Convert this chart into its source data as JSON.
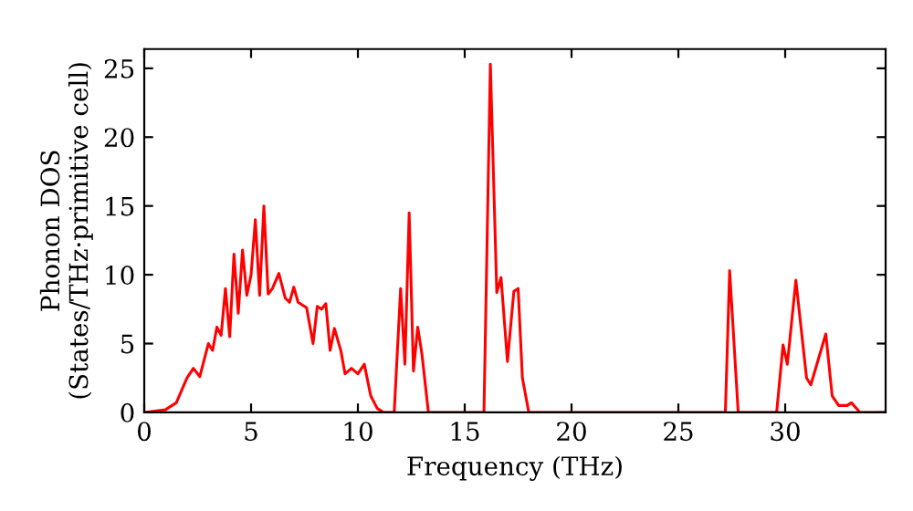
{
  "chart_data": {
    "type": "line",
    "xlabel": "Frequency (THz)",
    "ylabel": "Phonon DOS\n(States/THz·primitive cell)",
    "x": [
      0,
      1,
      1.5,
      2,
      2.3,
      2.6,
      3,
      3.2,
      3.4,
      3.6,
      3.8,
      4,
      4.2,
      4.4,
      4.6,
      4.8,
      5.0,
      5.2,
      5.4,
      5.6,
      5.8,
      6,
      6.3,
      6.6,
      6.8,
      7,
      7.2,
      7.6,
      7.9,
      8.1,
      8.3,
      8.5,
      8.7,
      8.9,
      9.2,
      9.4,
      9.7,
      10,
      10.3,
      10.6,
      10.9,
      11.2,
      11.7,
      12,
      12.2,
      12.4,
      12.6,
      12.8,
      13,
      13.3,
      15.9,
      16.2,
      16.5,
      16.7,
      17,
      17.3,
      17.5,
      17.7,
      18,
      27.2,
      27.4,
      27.8,
      29.6,
      29.9,
      30.1,
      30.5,
      31,
      31.2,
      31.9,
      32.2,
      32.5,
      32.9,
      33.1,
      33.5,
      34.7
    ],
    "series": [
      {
        "color": "#ff0000",
        "values": [
          0,
          0.2,
          0.7,
          2.5,
          3.2,
          2.6,
          5,
          4.5,
          6.2,
          5.6,
          9,
          5.5,
          11.5,
          7.2,
          11.8,
          8.5,
          10,
          14,
          8.5,
          15,
          8.6,
          9,
          10.1,
          8.3,
          8,
          9.1,
          8,
          7.6,
          5,
          7.7,
          7.5,
          7.9,
          4.5,
          6.1,
          4.5,
          2.8,
          3.2,
          2.8,
          3.5,
          1.2,
          0.3,
          0,
          0,
          9,
          3.5,
          14.5,
          3,
          6.2,
          4.2,
          0,
          0,
          25.3,
          8.7,
          9.8,
          3.7,
          8.8,
          9,
          2.5,
          0,
          0,
          10.3,
          0,
          0,
          4.9,
          3.5,
          9.6,
          2.5,
          2,
          5.7,
          1.2,
          0.5,
          0.5,
          0.7,
          0,
          0
        ]
      }
    ],
    "xlim": [
      0,
      34.7
    ],
    "ylim": [
      0,
      26.4
    ],
    "xticks": [
      0,
      5,
      10,
      15,
      20,
      25,
      30
    ],
    "yticks": [
      0,
      5,
      10,
      15,
      20,
      25
    ],
    "grid": false,
    "marker": "none",
    "line_style": "solid"
  }
}
